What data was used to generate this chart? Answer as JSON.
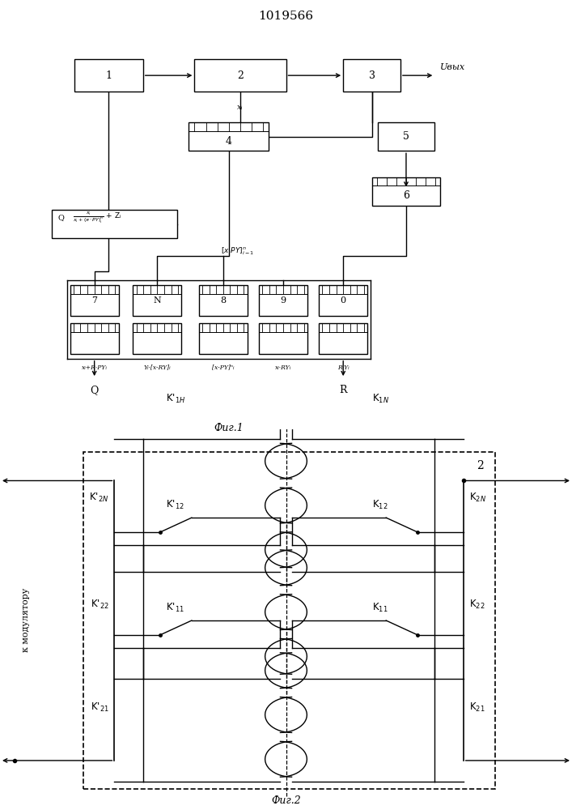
{
  "title": "1019566",
  "fig1_label": "Фиг.1",
  "fig2_label": "Фиг.2",
  "uvyx_label": "Uвых",
  "modulator_label": "к модулятору",
  "background": "#ffffff",
  "line_color": "#000000"
}
